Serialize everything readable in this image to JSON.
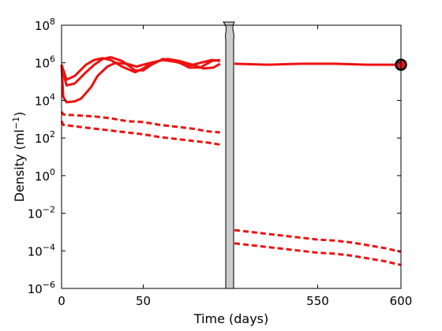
{
  "chart_data": {
    "type": "line",
    "xlabel": "Time (days)",
    "ylabel": {
      "base": "Density (ml",
      "sup": "−1",
      "close": ")"
    },
    "yscale": "log10",
    "ylim_exp": [
      -6,
      8
    ],
    "ytick_exps": [
      -6,
      -4,
      -2,
      0,
      2,
      4,
      6,
      8
    ],
    "ytick_base": "10",
    "ytick_sup_labels": [
      "−6",
      "−4",
      "−2",
      "0",
      "2",
      "4",
      "6",
      "8"
    ],
    "x_axis_break": true,
    "segments": [
      {
        "xlim": [
          0,
          100
        ],
        "xticks": [
          0,
          50
        ],
        "xtick_labels": [
          "0",
          "50"
        ]
      },
      {
        "xlim": [
          500,
          600
        ],
        "xticks": [
          550,
          600
        ],
        "xtick_labels": [
          "550",
          "600"
        ]
      }
    ],
    "line_color": "#ee1111",
    "break_color": "#cccccc",
    "marker": {
      "x": 600,
      "log10_y": 5.9,
      "fill": "#e31a1c",
      "edge": "#000000"
    },
    "series": [
      {
        "style": "solid",
        "segment": 0,
        "x": [
          0,
          3,
          8,
          15,
          20,
          25,
          30,
          37,
          45,
          50,
          55,
          62,
          70,
          78,
          85,
          92,
          97
        ],
        "log10_y": [
          5.9,
          5.1,
          5.3,
          5.9,
          6.15,
          6.25,
          6.15,
          5.8,
          5.5,
          5.7,
          6.0,
          6.15,
          6.05,
          5.85,
          6.0,
          6.15,
          6.1
        ]
      },
      {
        "style": "solid",
        "segment": 0,
        "x": [
          0,
          3,
          8,
          15,
          20,
          25,
          30,
          37,
          45,
          50,
          55,
          62,
          70,
          78,
          85,
          92,
          97
        ],
        "log10_y": [
          5.9,
          4.8,
          4.9,
          5.5,
          5.9,
          6.2,
          6.3,
          6.1,
          5.6,
          5.6,
          5.9,
          6.2,
          6.1,
          5.75,
          5.75,
          6.1,
          6.15
        ]
      },
      {
        "style": "solid",
        "segment": 0,
        "x": [
          0,
          1,
          3,
          8,
          12,
          18,
          22,
          28,
          33,
          40,
          46,
          50,
          57,
          65,
          72,
          80,
          87,
          93,
          97
        ],
        "log10_y": [
          5.9,
          4.2,
          3.9,
          3.95,
          4.1,
          4.7,
          5.3,
          5.8,
          6.0,
          5.95,
          5.8,
          5.9,
          6.05,
          6.2,
          6.1,
          5.9,
          5.7,
          5.75,
          5.95
        ]
      },
      {
        "style": "solid",
        "segment": 1,
        "x": [
          500,
          520,
          540,
          560,
          580,
          600
        ],
        "log10_y": [
          5.95,
          5.9,
          5.95,
          5.95,
          5.9,
          5.9
        ]
      },
      {
        "style": "dashed",
        "segment": 0,
        "x": [
          0,
          1,
          10,
          20,
          30,
          40,
          50,
          60,
          70,
          80,
          90,
          97
        ],
        "log10_y": [
          3.4,
          3.25,
          3.2,
          3.15,
          3.05,
          2.9,
          2.85,
          2.7,
          2.6,
          2.5,
          2.35,
          2.3
        ]
      },
      {
        "style": "dashed",
        "segment": 0,
        "x": [
          0,
          1,
          10,
          20,
          30,
          40,
          50,
          60,
          70,
          80,
          90,
          97
        ],
        "log10_y": [
          2.9,
          2.7,
          2.6,
          2.5,
          2.4,
          2.3,
          2.2,
          2.05,
          1.95,
          1.85,
          1.75,
          1.65
        ]
      },
      {
        "style": "dashed",
        "segment": 1,
        "x": [
          500,
          510,
          520,
          530,
          540,
          550,
          560,
          570,
          580,
          590,
          600
        ],
        "log10_y": [
          -2.9,
          -3.0,
          -3.1,
          -3.2,
          -3.3,
          -3.4,
          -3.45,
          -3.55,
          -3.7,
          -3.85,
          -4.05
        ]
      },
      {
        "style": "dashed",
        "segment": 1,
        "x": [
          500,
          510,
          520,
          530,
          540,
          550,
          560,
          570,
          580,
          590,
          600
        ],
        "log10_y": [
          -3.6,
          -3.7,
          -3.8,
          -3.9,
          -4.0,
          -4.1,
          -4.15,
          -4.25,
          -4.4,
          -4.55,
          -4.75
        ]
      }
    ]
  }
}
